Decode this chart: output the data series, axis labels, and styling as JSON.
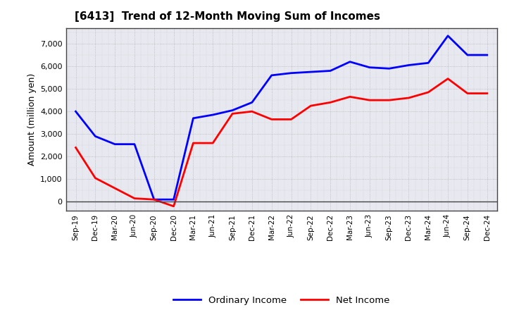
{
  "title": "[6413]  Trend of 12-Month Moving Sum of Incomes",
  "ylabel": "Amount (million yen)",
  "x_labels": [
    "Sep-19",
    "Dec-19",
    "Mar-20",
    "Jun-20",
    "Sep-20",
    "Dec-20",
    "Mar-21",
    "Jun-21",
    "Sep-21",
    "Dec-21",
    "Mar-22",
    "Jun-22",
    "Sep-22",
    "Dec-22",
    "Mar-23",
    "Jun-23",
    "Sep-23",
    "Dec-23",
    "Mar-24",
    "Jun-24",
    "Sep-24",
    "Dec-24"
  ],
  "ordinary_income": [
    4000,
    2900,
    2550,
    2550,
    100,
    100,
    3700,
    3850,
    4050,
    4400,
    5600,
    5700,
    5750,
    5800,
    6200,
    5950,
    5900,
    6050,
    6150,
    7350,
    6500,
    6500
  ],
  "net_income": [
    2400,
    1050,
    600,
    150,
    100,
    -200,
    2600,
    2600,
    3900,
    4000,
    3650,
    3650,
    4250,
    4400,
    4650,
    4500,
    4500,
    4600,
    4850,
    5450,
    4800,
    4800
  ],
  "ordinary_color": "#0000FF",
  "net_color": "#FF0000",
  "background_color": "#FFFFFF",
  "plot_bg_color": "#E8E8F0",
  "grid_color": "#999999",
  "ylim": [
    -400,
    7700
  ],
  "yticks": [
    0,
    1000,
    2000,
    3000,
    4000,
    5000,
    6000,
    7000
  ],
  "legend_labels": [
    "Ordinary Income",
    "Net Income"
  ],
  "line_width": 2.0
}
